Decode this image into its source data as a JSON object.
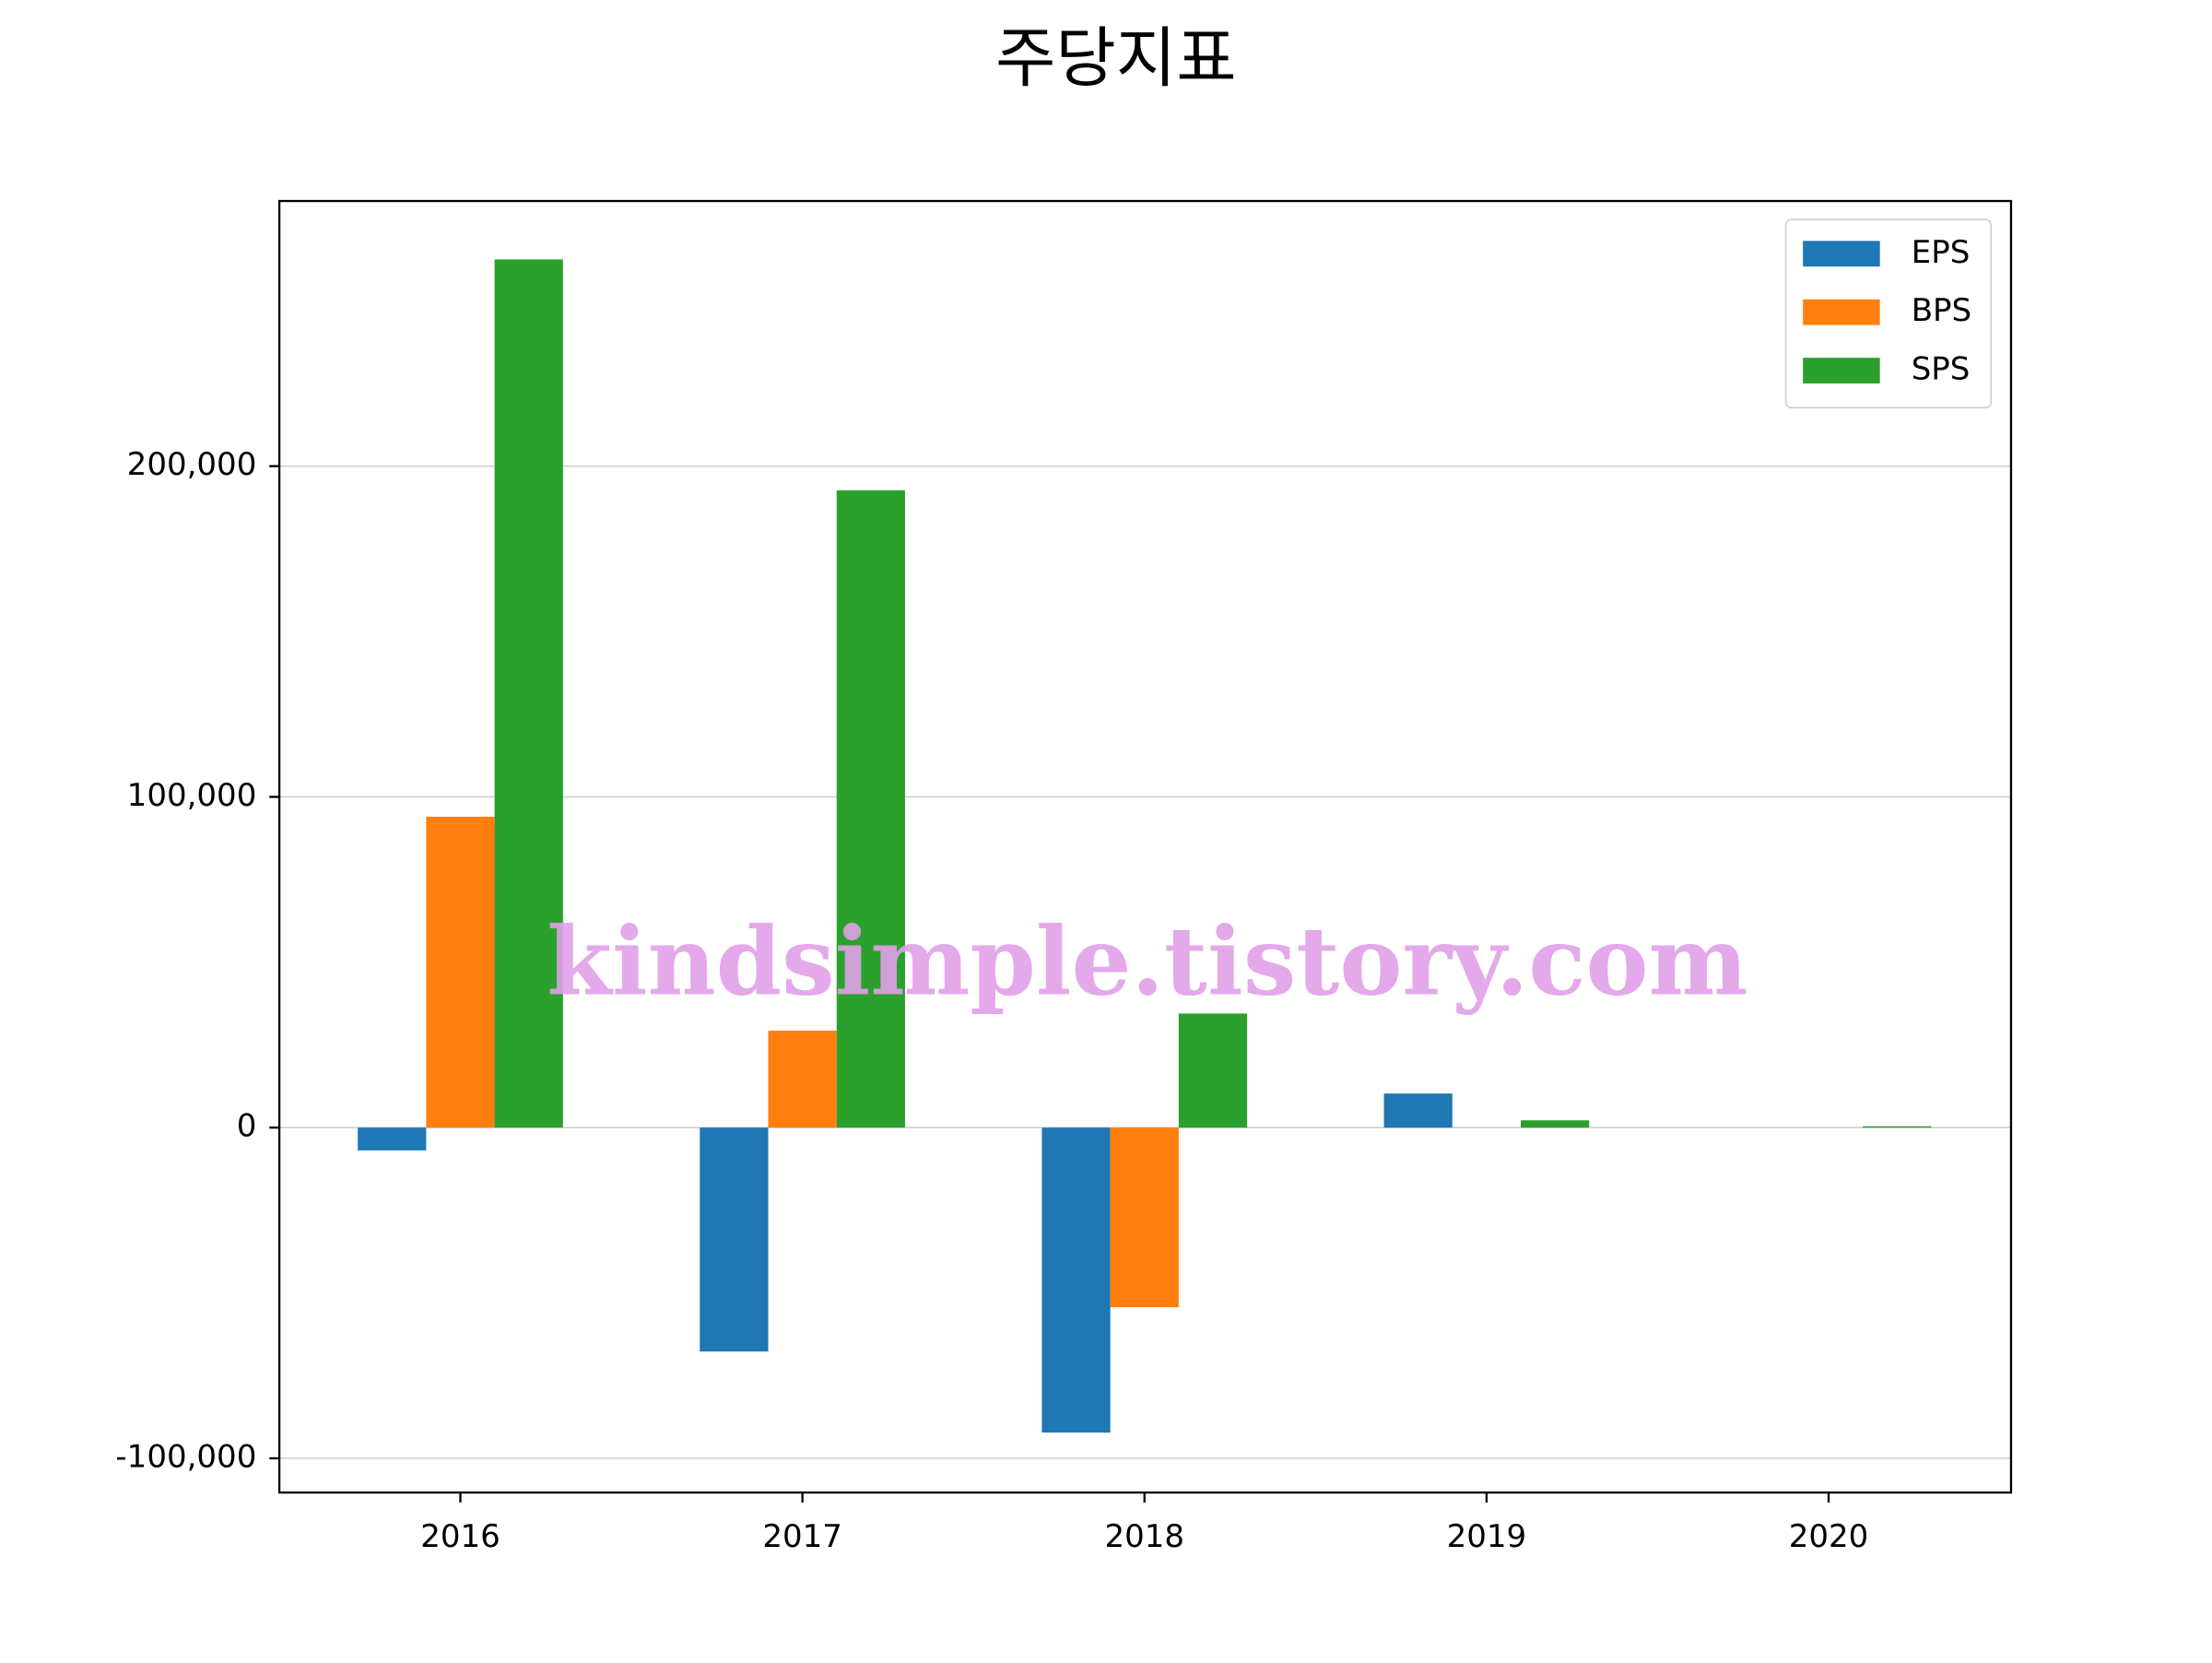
{
  "chart_data": {
    "type": "bar",
    "title": "주당지표",
    "categories": [
      "2016",
      "2017",
      "2018",
      "2019",
      "2020"
    ],
    "series": [
      {
        "name": "EPS",
        "color": "#1f77b4",
        "values": [
          -6900,
          -67700,
          -92200,
          10300,
          0
        ]
      },
      {
        "name": "BPS",
        "color": "#ff7f0e",
        "values": [
          94000,
          29300,
          -54300,
          0,
          0
        ]
      },
      {
        "name": "SPS",
        "color": "#2ca02c",
        "values": [
          262500,
          192700,
          34500,
          2200,
          400
        ]
      }
    ],
    "ylim": [
      -110345,
      280172
    ],
    "yticks": [
      {
        "value": -100000,
        "label": "-100,000"
      },
      0,
      {
        "value": 100000,
        "label": "100,000"
      },
      {
        "value": 200000,
        "label": "200,000"
      }
    ],
    "grid": true,
    "legend": "upper right",
    "watermark": "kindsimple.tistory.com"
  }
}
